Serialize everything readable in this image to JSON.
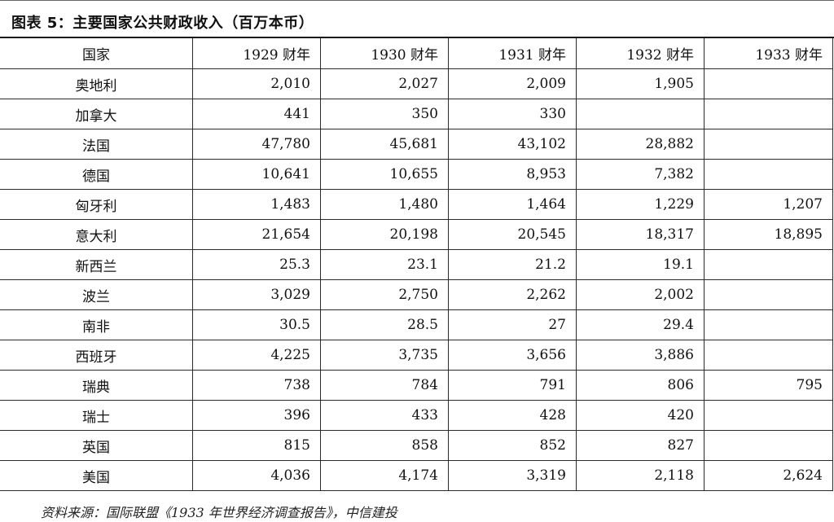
{
  "title": "图表 5：主要国家公共财政收入（百万本币）",
  "table": {
    "headers": [
      "国家",
      "1929 财年",
      "1930 财年",
      "1931 财年",
      "1932 财年",
      "1933 财年"
    ],
    "rows": [
      [
        "奥地利",
        "2,010",
        "2,027",
        "2,009",
        "1,905",
        ""
      ],
      [
        "加拿大",
        "441",
        "350",
        "330",
        "",
        ""
      ],
      [
        "法国",
        "47,780",
        "45,681",
        "43,102",
        "28,882",
        ""
      ],
      [
        "德国",
        "10,641",
        "10,655",
        "8,953",
        "7,382",
        ""
      ],
      [
        "匈牙利",
        "1,483",
        "1,480",
        "1,464",
        "1,229",
        "1,207"
      ],
      [
        "意大利",
        "21,654",
        "20,198",
        "20,545",
        "18,317",
        "18,895"
      ],
      [
        "新西兰",
        "25.3",
        "23.1",
        "21.2",
        "19.1",
        ""
      ],
      [
        "波兰",
        "3,029",
        "2,750",
        "2,262",
        "2,002",
        ""
      ],
      [
        "南非",
        "30.5",
        "28.5",
        "27",
        "29.4",
        ""
      ],
      [
        "西班牙",
        "4,225",
        "3,735",
        "3,656",
        "3,886",
        ""
      ],
      [
        "瑞典",
        "738",
        "784",
        "791",
        "806",
        "795"
      ],
      [
        "瑞士",
        "396",
        "433",
        "428",
        "420",
        ""
      ],
      [
        "英国",
        "815",
        "858",
        "852",
        "827",
        ""
      ],
      [
        "美国",
        "4,036",
        "4,174",
        "3,319",
        "2,118",
        "2,624"
      ]
    ]
  },
  "source": "资料来源：国际联盟《1933 年世界经济调查报告》，中信建投"
}
